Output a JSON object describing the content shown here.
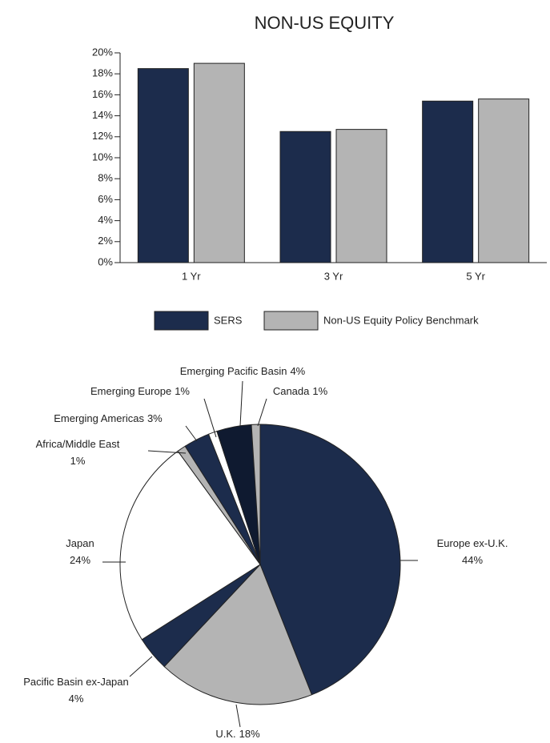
{
  "chart_data": [
    {
      "type": "bar",
      "title": "NON-US EQUITY",
      "categories": [
        "1 Yr",
        "3 Yr",
        "5 Yr"
      ],
      "series": [
        {
          "name": "SERS",
          "color": "#1c2c4c",
          "values": [
            18.5,
            12.5,
            15.4
          ]
        },
        {
          "name": "Non-US Equity Policy Benchmark",
          "color": "#b4b4b4",
          "values": [
            19.0,
            12.7,
            15.6
          ]
        }
      ],
      "ylim": [
        0,
        20
      ],
      "yticks": [
        {
          "value": 0,
          "label": "0%"
        },
        {
          "value": 2,
          "label": "2%"
        },
        {
          "value": 4,
          "label": "4%"
        },
        {
          "value": 6,
          "label": "6%"
        },
        {
          "value": 8,
          "label": "8%"
        },
        {
          "value": 10,
          "label": "10%"
        },
        {
          "value": 12,
          "label": "12%"
        },
        {
          "value": 14,
          "label": "14%"
        },
        {
          "value": 16,
          "label": "16%"
        },
        {
          "value": 18,
          "label": "18%"
        },
        {
          "value": 20,
          "label": "20%"
        }
      ],
      "legend": "bottom"
    },
    {
      "type": "pie",
      "categories": [
        "Europe ex-U.K.",
        "U.K.",
        "Pacific Basin ex-Japan",
        "Japan",
        "Africa/Middle East",
        "Emerging Americas",
        "Emerging Europe",
        "Emerging Pacific Basin",
        "Canada"
      ],
      "values": [
        44,
        18,
        4,
        24,
        1,
        3,
        1,
        4,
        1
      ],
      "value_labels": [
        "44%",
        "18%",
        "4%",
        "24%",
        "1%",
        "3%",
        "1%",
        "4%",
        "1%"
      ],
      "colors": [
        "#1c2c4c",
        "#b4b4b4",
        "#1c2c4c",
        "#ffffff",
        "#b4b4b4",
        "#1c2c4c",
        "#ffffff",
        "#0f1a30",
        "#b4b4b4"
      ]
    }
  ]
}
